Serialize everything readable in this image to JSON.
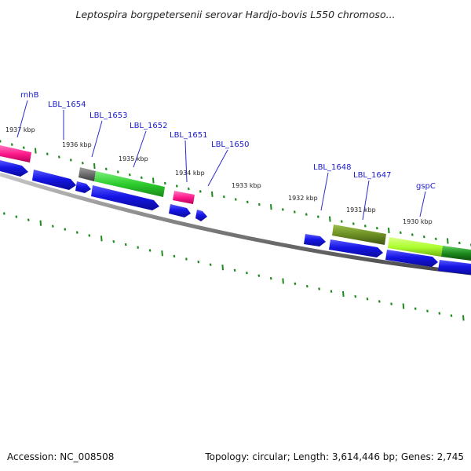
{
  "title": "Leptospira borgpetersenii serovar Hardjo-bovis L550 chromoso...",
  "footer": {
    "accession": "Accession: NC_008508",
    "summary": "Topology: circular; Length: 3,614,446 bp; Genes: 2,745"
  },
  "colors": {
    "backbone": "#808080",
    "tick": "#1d8a1d",
    "cds_blue": "#1515e6",
    "gene_label": "#1a1acc",
    "feature_pink": "#ff1a8c",
    "feature_gray": "#6e6e6e",
    "feature_green": "#2ecc2e",
    "feature_olive": "#6b8e23",
    "feature_lime": "#adff2f",
    "feature_darkgreen": "#1e8c1e"
  },
  "axis_labels": [
    {
      "text": "1937 kbp"
    },
    {
      "text": "1936 kbp"
    },
    {
      "text": "1935 kbp"
    },
    {
      "text": "1934 kbp"
    },
    {
      "text": "1933 kbp"
    },
    {
      "text": "1932 kbp"
    },
    {
      "text": "1931 kbp"
    },
    {
      "text": "1930 kbp"
    }
  ],
  "gene_labels": [
    {
      "name": "rnhB"
    },
    {
      "name": "LBL_1654"
    },
    {
      "name": "LBL_1653"
    },
    {
      "name": "LBL_1652"
    },
    {
      "name": "LBL_1651"
    },
    {
      "name": "LBL_1650"
    },
    {
      "name": "LBL_1648"
    },
    {
      "name": "LBL_1647"
    },
    {
      "name": "gspC"
    }
  ]
}
